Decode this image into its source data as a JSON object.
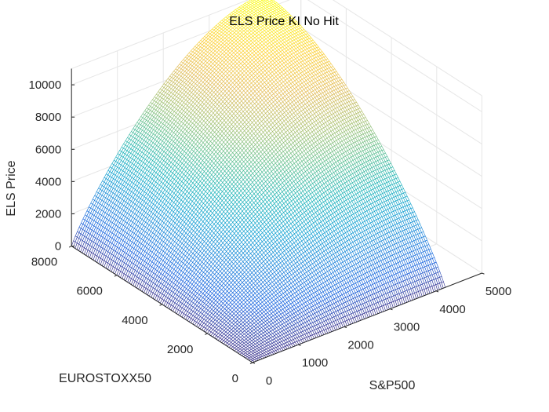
{
  "chart_data": {
    "type": "surface",
    "title": "ELS Price KI No Hit",
    "xlabel": "S&P500",
    "ylabel": "EUROSTOXX50",
    "zlabel": "ELS Price",
    "xlim": [
      0,
      5000
    ],
    "ylim": [
      0,
      8000
    ],
    "zlim": [
      0,
      11000
    ],
    "xticks": [
      "0",
      "1000",
      "2000",
      "3000",
      "4000",
      "5000"
    ],
    "yticks": [
      "0",
      "2000",
      "4000",
      "6000",
      "8000"
    ],
    "zticks": [
      "0",
      "2000",
      "4000",
      "6000",
      "8000",
      "10000"
    ],
    "x_data_max": 4200,
    "y_data_max": 8000,
    "z_plateau": 11000,
    "grid": true,
    "colormap": "parula",
    "mesh_lines": 100
  }
}
